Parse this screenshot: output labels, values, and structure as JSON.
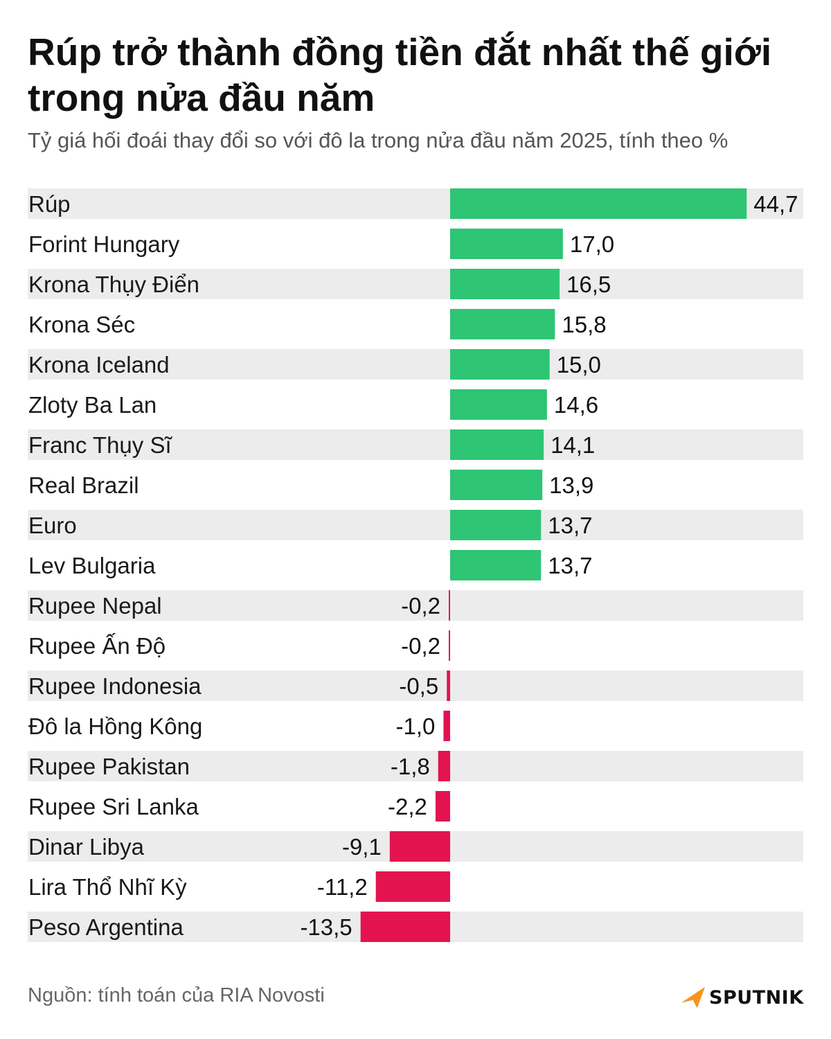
{
  "header": {
    "title": "Rúp trở thành đồng tiền đắt nhất thế giới trong nửa đầu năm",
    "subtitle": "Tỷ giá hối đoái thay đổi so với đô la trong nửa đầu năm 2025, tính theo %"
  },
  "footer": {
    "source": "Nguồn: tính toán của RIA Novosti",
    "brand": "SPUTNIK",
    "brand_icon": "sputnik-logo-icon"
  },
  "colors": {
    "positive": "#2ec574",
    "negative": "#e3134f",
    "row_band": "#ececec",
    "brand_orange": "#f7941d"
  },
  "chart_data": {
    "type": "bar",
    "orientation": "horizontal",
    "grid": false,
    "legend": "none",
    "xlim": [
      -14,
      45
    ],
    "categories": [
      "Rúp",
      "Forint Hungary",
      "Krona Thụy Điển",
      "Krona Séc",
      "Krona Iceland",
      "Zloty Ba Lan",
      "Franc Thụy Sĩ",
      "Real Brazil",
      "Euro",
      "Lev Bulgaria",
      "Rupee Nepal",
      "Rupee Ấn Độ",
      "Rupee Indonesia",
      "Đô la Hồng Kông",
      "Rupee Pakistan",
      "Rupee Sri Lanka",
      "Dinar Libya",
      "Lira Thổ Nhĩ Kỳ",
      "Peso Argentina"
    ],
    "values": [
      44.7,
      17.0,
      16.5,
      15.8,
      15.0,
      14.6,
      14.1,
      13.9,
      13.7,
      13.7,
      -0.2,
      -0.2,
      -0.5,
      -1.0,
      -1.8,
      -2.2,
      -9.1,
      -11.2,
      -13.5
    ],
    "value_labels": [
      "44,7",
      "17,0",
      "16,5",
      "15,8",
      "15,0",
      "14,6",
      "14,1",
      "13,9",
      "13,7",
      "13,7",
      "-0,2",
      "-0,2",
      "-0,5",
      "-1,0",
      "-1,8",
      "-2,2",
      "-9,1",
      "-11,2",
      "-13,5"
    ]
  }
}
